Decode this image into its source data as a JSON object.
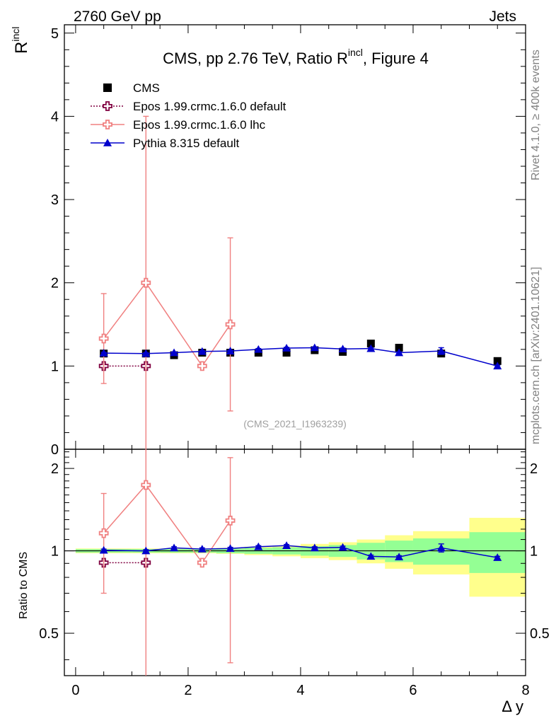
{
  "header": {
    "left": "2760 GeV pp",
    "right": "Jets"
  },
  "side_labels": {
    "rivet": "Rivet 4.1.0, ≥ 400k events",
    "mcplots": "mcplots.cern.ch [arXiv:2401.10621]"
  },
  "chart_data": {
    "type": "line",
    "title_main": "CMS, pp 2.76 TeV, Ratio R",
    "title_sup": "incl",
    "title_end": ", Figure 4",
    "ylabel_main": "R",
    "ylabel_sup": "incl",
    "xlabel": "Δ y",
    "ratio_ylabel": "Ratio to CMS",
    "watermark": "(CMS_2021_I1963239)",
    "xlim": [
      -0.2,
      8.0
    ],
    "ylim": [
      0,
      5.1
    ],
    "ratio_ylim": [
      0.35,
      2.35
    ],
    "x_ticks": [
      "0",
      "2",
      "4",
      "6",
      "8"
    ],
    "y_ticks": [
      "0",
      "1",
      "2",
      "3",
      "4",
      "5"
    ],
    "ratio_ticks": [
      "0.5",
      "1",
      "2"
    ],
    "legend": [
      "CMS",
      "Epos 1.99.crmc.1.6.0 default",
      "Epos 1.99.crmc.1.6.0 lhc",
      "Pythia 8.315 default"
    ],
    "data": {
      "name": "CMS",
      "x": [
        0.5,
        1.25,
        1.75,
        2.25,
        2.75,
        3.25,
        3.75,
        4.25,
        4.75,
        5.25,
        5.75,
        6.5,
        7.5
      ],
      "y": [
        1.15,
        1.15,
        1.13,
        1.16,
        1.16,
        1.16,
        1.16,
        1.19,
        1.17,
        1.27,
        1.22,
        1.15,
        1.06
      ],
      "bin_edges": [
        0,
        1,
        1.5,
        2,
        2.5,
        3,
        3.5,
        4,
        4.5,
        5,
        5.5,
        6,
        7,
        8
      ],
      "unc_inner": [
        0.015,
        0.015,
        0.015,
        0.015,
        0.02,
        0.025,
        0.03,
        0.04,
        0.05,
        0.07,
        0.09,
        0.11,
        0.17
      ],
      "unc_outer": [
        0.02,
        0.02,
        0.02,
        0.02,
        0.025,
        0.035,
        0.045,
        0.06,
        0.075,
        0.1,
        0.14,
        0.18,
        0.32
      ]
    },
    "series": [
      {
        "name": "Epos 1.99.crmc.1.6.0 default",
        "color": "#800040",
        "x": [
          0.5,
          1.25
        ],
        "y": [
          1.0,
          1.0
        ],
        "err": [
          0,
          0
        ],
        "ratio": [
          0.905,
          0.905
        ],
        "ratio_err": [
          0,
          0
        ]
      },
      {
        "name": "Epos 1.99.crmc.1.6.0 lhc",
        "color": "#f08080",
        "x": [
          0.5,
          1.25,
          2.25,
          2.75
        ],
        "y": [
          1.33,
          2.0,
          1.0,
          1.5
        ],
        "err": [
          0.54,
          2.0,
          0,
          1.04
        ],
        "ratio": [
          1.16,
          1.74,
          0.905,
          1.29
        ],
        "ratio_err": [
          0.46,
          1.74,
          0,
          0.9
        ]
      },
      {
        "name": "Pythia 8.315 default",
        "color": "#0000cc",
        "x": [
          0.5,
          1.25,
          1.75,
          2.25,
          2.75,
          3.25,
          3.75,
          4.25,
          4.75,
          5.25,
          5.75,
          6.5,
          7.5
        ],
        "y": [
          1.155,
          1.15,
          1.16,
          1.175,
          1.18,
          1.2,
          1.215,
          1.22,
          1.205,
          1.21,
          1.16,
          1.18,
          1.0
        ],
        "err": [
          0.01,
          0.01,
          0.01,
          0.01,
          0.01,
          0.01,
          0.01,
          0.01,
          0.01,
          0.01,
          0.01,
          0.04,
          0.01
        ],
        "ratio": [
          1.005,
          1.0,
          1.025,
          1.015,
          1.02,
          1.035,
          1.045,
          1.025,
          1.03,
          0.955,
          0.95,
          1.025,
          0.945
        ],
        "ratio_err": [
          0.01,
          0.01,
          0.01,
          0.01,
          0.01,
          0.01,
          0.01,
          0.01,
          0.01,
          0.01,
          0.01,
          0.035,
          0.01
        ]
      }
    ]
  },
  "colors": {
    "band_outer": "#ffff8c",
    "band_inner": "#94ff94",
    "axis": "#000000",
    "grey_text": "#808080"
  }
}
